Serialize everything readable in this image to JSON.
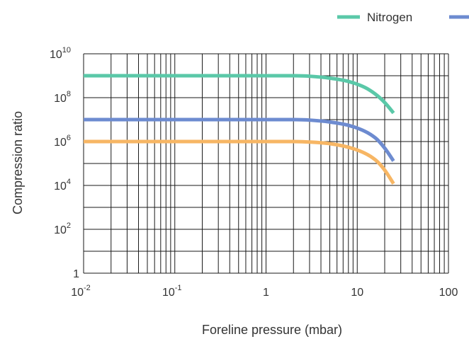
{
  "chart_data": {
    "type": "line",
    "xscale": "log",
    "yscale": "log",
    "xlabel": "Foreline pressure (mbar)",
    "ylabel": "Compression ratio",
    "xlim": [
      0.01,
      100
    ],
    "ylim": [
      1,
      10000000000
    ],
    "grid": true,
    "legend_position": "top-right",
    "x_ticks": [
      {
        "base": "10",
        "exp": "-2"
      },
      {
        "base": "10",
        "exp": "-1"
      },
      {
        "base": "1",
        "exp": ""
      },
      {
        "base": "10",
        "exp": ""
      },
      {
        "base": "100",
        "exp": ""
      }
    ],
    "y_ticks": [
      {
        "base": "1",
        "exp": ""
      },
      {
        "base": "10",
        "exp": "2"
      },
      {
        "base": "10",
        "exp": "4"
      },
      {
        "base": "10",
        "exp": "6"
      },
      {
        "base": "10",
        "exp": "8"
      },
      {
        "base": "10",
        "exp": "10"
      }
    ],
    "series": [
      {
        "name": "Nitrogen",
        "color": "#5ac8a8",
        "x": [
          0.01,
          1,
          2,
          3,
          5,
          8,
          12,
          16,
          20,
          25
        ],
        "y": [
          1000000000,
          1000000000,
          1000000000,
          950000000,
          780000000,
          550000000,
          300000000,
          140000000,
          60000000,
          20000000
        ]
      },
      {
        "name": "",
        "color": "#6d8bd0",
        "x": [
          0.01,
          1,
          2,
          3,
          5,
          8,
          12,
          16,
          20,
          25
        ],
        "y": [
          10000000,
          10000000,
          10000000,
          9500000,
          7800000,
          5500000,
          3000000,
          1400000,
          500000,
          130000
        ]
      },
      {
        "name": "",
        "color": "#f7b664",
        "x": [
          0.01,
          1,
          2,
          3,
          5,
          8,
          12,
          16,
          20,
          25
        ],
        "y": [
          1000000,
          1000000,
          1000000,
          950000,
          800000,
          550000,
          300000,
          140000,
          50000,
          12000
        ]
      }
    ]
  }
}
